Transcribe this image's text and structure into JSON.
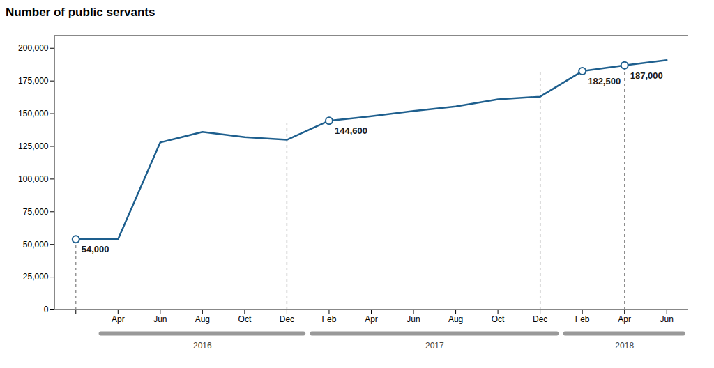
{
  "chart_data": {
    "type": "line",
    "title": "Number of public servants",
    "categories": [
      null,
      "Apr",
      "Jun",
      "Aug",
      "Oct",
      "Dec",
      "Feb",
      "Apr",
      "Jun",
      "Aug",
      "Oct",
      "Dec",
      "Feb",
      "Apr",
      "Jun"
    ],
    "values": [
      54000,
      54000,
      128000,
      136000,
      132000,
      130000,
      144600,
      148000,
      152000,
      155500,
      161000,
      163000,
      182500,
      187000,
      191000
    ],
    "color": "#1e5f8e",
    "marker": "circle",
    "highlighted": [
      0,
      6,
      12,
      13
    ],
    "drop_lines": [
      {
        "x": 0,
        "y": 54000
      },
      {
        "x": 5,
        "y": 144600
      },
      {
        "x": 11,
        "y": 182500
      },
      {
        "x": 13,
        "y": 191000
      }
    ],
    "annotations": [
      {
        "text": "54,000",
        "x": 0,
        "y": 54000
      },
      {
        "text": "144,600",
        "x": 6,
        "y": 144600
      },
      {
        "text": "182,500",
        "x": 12,
        "y": 182500
      },
      {
        "text": "187,000",
        "x": 13,
        "y": 187000
      }
    ],
    "year_groups": [
      {
        "label": "2016",
        "first": 1,
        "last": 5
      },
      {
        "label": "2017",
        "first": 6,
        "last": 11
      },
      {
        "label": "2018",
        "first": 12,
        "last": 14
      }
    ],
    "ylim": [
      0,
      210000
    ],
    "yticks": [
      0,
      {
        "value": 25000,
        "label": "25,000"
      },
      {
        "value": 50000,
        "label": "50,000"
      },
      {
        "value": 75000,
        "label": "75,000"
      },
      {
        "value": 100000,
        "label": "100,000"
      },
      {
        "value": 125000,
        "label": "125,000"
      },
      {
        "value": 150000,
        "label": "150,000"
      },
      {
        "value": 175000,
        "label": "175,000"
      },
      {
        "value": 200000,
        "label": "200,000"
      }
    ],
    "grid": false
  }
}
